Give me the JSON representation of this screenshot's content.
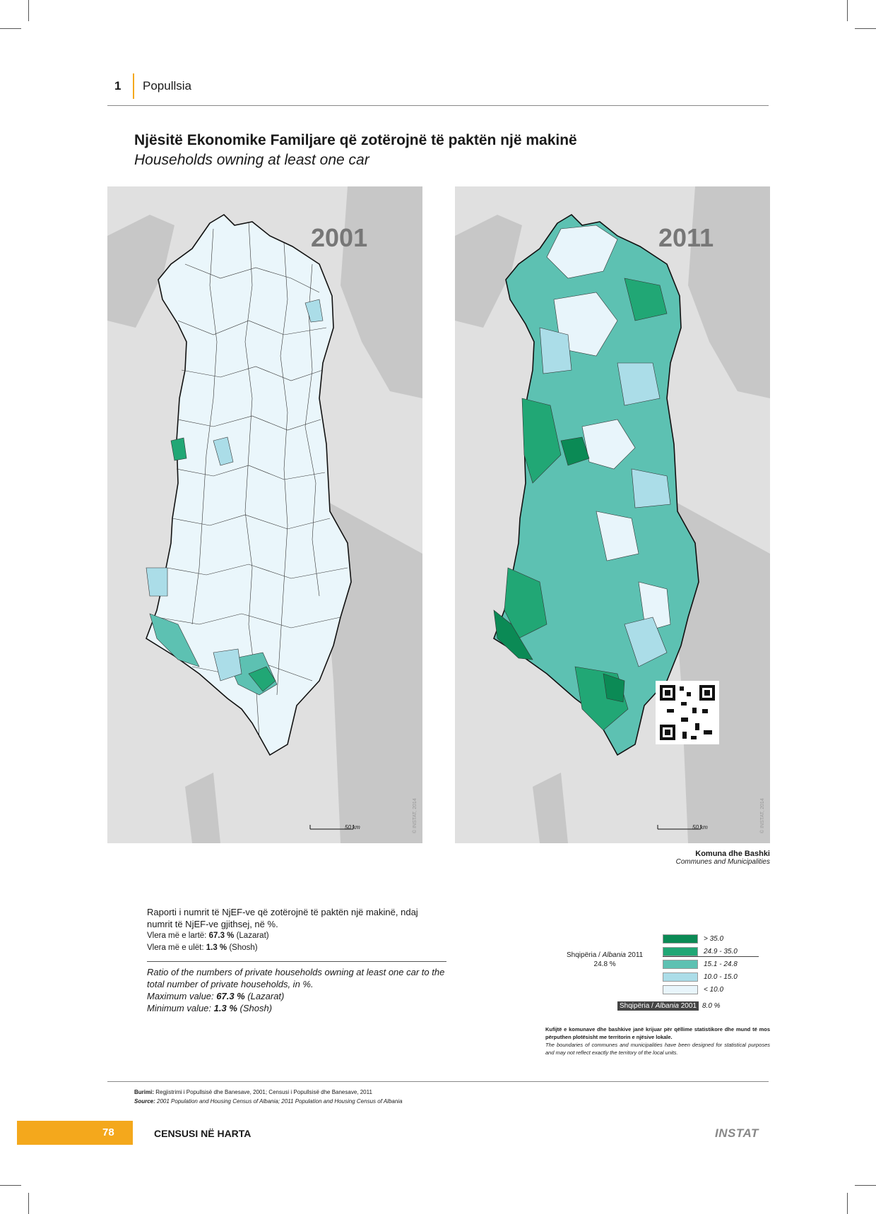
{
  "header": {
    "chapter_number": "1",
    "chapter_title": "Popullsia"
  },
  "title": {
    "albanian": "Njësitë Ekonomike Familjare që zotërojnë të paktën një makinë",
    "english": "Households owning at least one car"
  },
  "maps": [
    {
      "year": "2001",
      "scale_label": "50 km",
      "copyright": "© INSTAT, 2014"
    },
    {
      "year": "2011",
      "scale_label": "50 km",
      "copyright": "© INSTAT, 2014"
    }
  ],
  "units_label": {
    "albanian": "Komuna dhe Bashki",
    "english": "Communes and Municipalities"
  },
  "description": {
    "albanian": "Raporti i numrit të NjEF-ve që zotërojnë të paktën një makinë, ndaj numrit të NjEF-ve gjithsej, në %.",
    "max_label_sq": "Vlera më e lartë: ",
    "max_value": "67.3 %",
    "max_place": " (Lazarat)",
    "min_label_sq": "Vlera më e ulët: ",
    "min_value": "1.3 %",
    "min_place": " (Shosh)",
    "english": "Ratio of the numbers of private households owning at least one car to the total number of private households, in %.",
    "max_label_en": "Maximum value: ",
    "min_label_en": "Minimum value: "
  },
  "legend": {
    "classes": [
      {
        "label": "> 35.0",
        "color": "#0b8a55"
      },
      {
        "label": "24.9 - 35.0",
        "color": "#21a775"
      },
      {
        "label": "15.1 - 24.8",
        "color": "#5dc1b2"
      },
      {
        "label": "10.0 - 15.0",
        "color": "#abdde8"
      },
      {
        "label": "< 10.0",
        "color": "#e8f5fb"
      }
    ],
    "albania_2011_label_pre": "Shqipëria / ",
    "albania_2011_label_it": "Albania",
    "albania_2011_label_post": " 2011",
    "albania_2011_value": "24.8 %",
    "albania_2001_label_pre": "Shqipëria / ",
    "albania_2001_label_it": "Albania",
    "albania_2001_label_post": " 2001",
    "albania_2001_value": "8.0 %"
  },
  "note": {
    "albanian": "Kufijtë e komunave dhe bashkive janë krijuar për qëllime statistikore dhe mund të mos përputhen plotësisht me territorin e njësive lokale.",
    "english": "The boundaries of communes and municipalities have been designed for statistical purposes and may not reflect exactly the territory of the local units."
  },
  "source": {
    "label_sq": "Burimi:",
    "text_sq": " Regjistrimi i Popullsisë dhe Banesave, 2001; Censusi i Popullsisë dhe Banesave, 2011",
    "label_en": "Source:",
    "text_en": " 2001 Population and Housing Census of Albania; 2011 Population and Housing Census of Albania"
  },
  "footer": {
    "page_number": "78",
    "publication": "CENSUSI NË HARTA",
    "logo": "INSTAT"
  }
}
